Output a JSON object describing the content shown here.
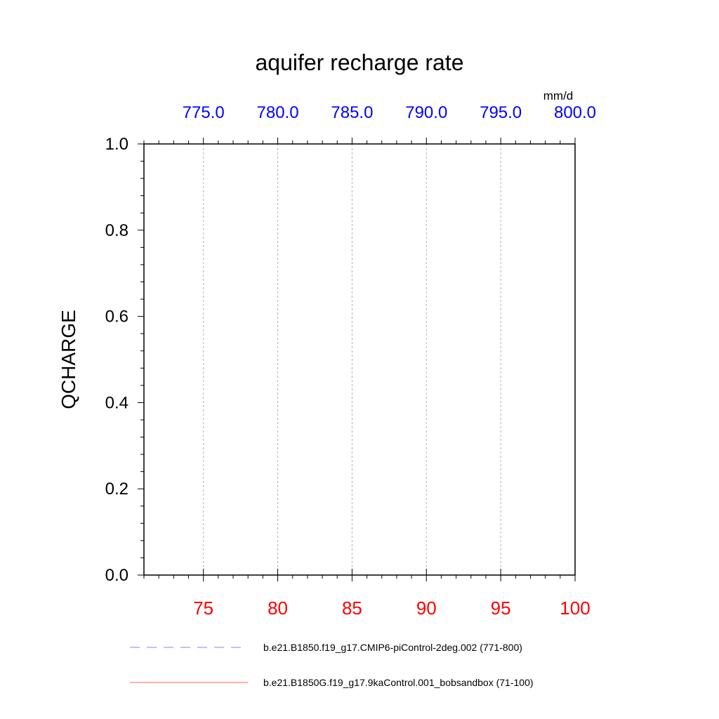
{
  "chart_data": {
    "type": "line",
    "title": "aquifer recharge rate",
    "units": "mm/d",
    "ylabel": "QCHARGE",
    "ylim": [
      0.0,
      1.0
    ],
    "yticks": [
      "0.0",
      "0.2",
      "0.4",
      "0.6",
      "0.8",
      "1.0"
    ],
    "xlim_bottom": [
      71,
      100
    ],
    "xticks_bottom": [
      "75",
      "80",
      "85",
      "90",
      "95",
      "100"
    ],
    "bottom_axis_color": "#ff0000",
    "xlim_top": [
      771,
      800
    ],
    "xticks_top": [
      "775.0",
      "780.0",
      "785.0",
      "790.0",
      "795.0",
      "800.0"
    ],
    "top_axis_color": "#0000ff",
    "grid": "vertical dashed",
    "legend_position": "bottom",
    "series": [
      {
        "name": "b.e21.B1850.f19_g17.CMIP6-piControl-2deg.002 (771-800)",
        "color": "#8080ff",
        "dash": "dashed",
        "axis": "top",
        "x": [
          771,
          800
        ],
        "values": [
          0.0,
          0.0
        ]
      },
      {
        "name": "b.e21.B1850G.f19_g17.9kaControl.001_bobsandbox (71-100)",
        "color": "#ff6060",
        "dash": "solid",
        "axis": "bottom",
        "x": [
          71,
          100
        ],
        "values": [
          0.0,
          0.0
        ]
      }
    ]
  }
}
